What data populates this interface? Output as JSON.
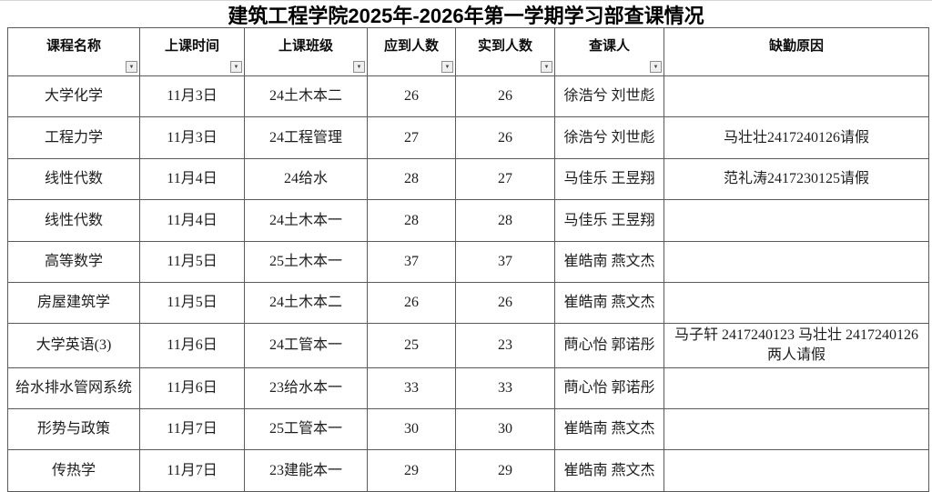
{
  "title": "建筑工程学院2025年-2026年第一学期学习部查课情况",
  "columns": [
    {
      "key": "course",
      "label": "课程名称",
      "filter": true
    },
    {
      "key": "time",
      "label": "上课时间",
      "filter": true
    },
    {
      "key": "class",
      "label": "上课班级",
      "filter": true
    },
    {
      "key": "expected",
      "label": "应到人数",
      "filter": true
    },
    {
      "key": "actual",
      "label": "实到人数",
      "filter": true
    },
    {
      "key": "inspectors",
      "label": "查课人",
      "filter": true
    },
    {
      "key": "reason",
      "label": "缺勤原因",
      "filter": false
    }
  ],
  "icons": {
    "filter_dropdown": "▼"
  },
  "colors": {
    "border": "#5a5a5a",
    "text": "#1d1d1d",
    "filter_button_bg": "#efefef",
    "filter_button_border": "#8f8f8f"
  },
  "rows": [
    {
      "course": "大学化学",
      "time": "11月3日",
      "class": "24土木本二",
      "expected": "26",
      "actual": "26",
      "inspectors": "徐浩兮 刘世彪",
      "reason": ""
    },
    {
      "course": "工程力学",
      "time": "11月3日",
      "class": "24工程管理",
      "expected": "27",
      "actual": "26",
      "inspectors": "徐浩兮 刘世彪",
      "reason": "马壮壮2417240126请假"
    },
    {
      "course": "线性代数",
      "time": "11月4日",
      "class": "24给水",
      "expected": "28",
      "actual": "27",
      "inspectors": "马佳乐 王昱翔",
      "reason": "范礼涛2417230125请假"
    },
    {
      "course": "线性代数",
      "time": "11月4日",
      "class": "24土木本一",
      "expected": "28",
      "actual": "28",
      "inspectors": "马佳乐 王昱翔",
      "reason": ""
    },
    {
      "course": "高等数学",
      "time": "11月5日",
      "class": "25土木本一",
      "expected": "37",
      "actual": "37",
      "inspectors": "崔皓南 燕文杰",
      "reason": ""
    },
    {
      "course": "房屋建筑学",
      "time": "11月5日",
      "class": "24土木本二",
      "expected": "26",
      "actual": "26",
      "inspectors": "崔皓南 燕文杰",
      "reason": ""
    },
    {
      "course": "大学英语(3)",
      "time": "11月6日",
      "class": "24工管本一",
      "expected": "25",
      "actual": "23",
      "inspectors": "蔄心怡 郭诺彤",
      "reason": "马子轩 2417240123 马壮壮 2417240126 两人请假"
    },
    {
      "course": "给水排水管网系统",
      "time": "11月6日",
      "class": "23给水本一",
      "expected": "33",
      "actual": "33",
      "inspectors": "蔄心怡 郭诺彤",
      "reason": ""
    },
    {
      "course": "形势与政策",
      "time": "11月7日",
      "class": "25工管本一",
      "expected": "30",
      "actual": "30",
      "inspectors": "崔皓南 燕文杰",
      "reason": ""
    },
    {
      "course": "传热学",
      "time": "11月7日",
      "class": "23建能本一",
      "expected": "29",
      "actual": "29",
      "inspectors": "崔皓南 燕文杰",
      "reason": ""
    }
  ]
}
